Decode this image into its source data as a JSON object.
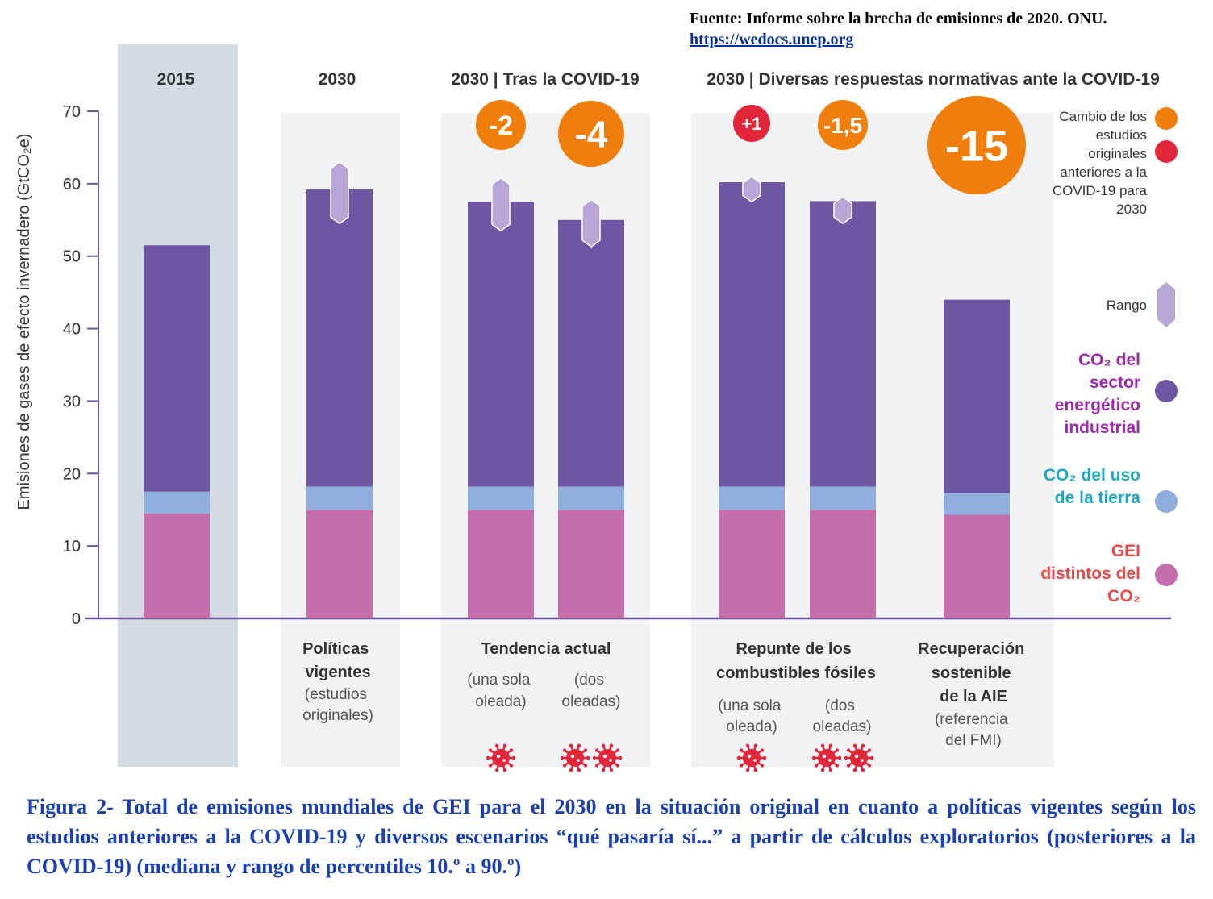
{
  "source": {
    "text": "Fuente: Informe sobre la brecha de emisiones de 2020. ONU.",
    "url": "https://wedocs.unep.org"
  },
  "headers": {
    "h2015": "2015",
    "h2030": "2030",
    "h_covid": "2030 | Tras la COVID-19",
    "h_policy": "2030 | Diversas respuestas normativas ante la COVID-19"
  },
  "chart_data": {
    "type": "bar",
    "stacked": true,
    "ylabel": "Emisiones de gases de efecto invernadero (GtCO₂e)",
    "ylim": [
      0,
      70
    ],
    "yticks": [
      0,
      10,
      20,
      30,
      40,
      50,
      60,
      70
    ],
    "categories": [
      "2015",
      "Políticas vigentes",
      "Tendencia actual (una sola oleada)",
      "Tendencia actual (dos oleadas)",
      "Repunte (una sola oleada)",
      "Repunte (dos oleadas)",
      "Recuperación sostenible"
    ],
    "series": [
      {
        "name": "GEI distintos del CO₂",
        "color": "#c46fab",
        "values": [
          14.5,
          15,
          15,
          15,
          15,
          15,
          14.3
        ]
      },
      {
        "name": "CO₂ del uso de la tierra",
        "color": "#8faede",
        "values": [
          3,
          3.2,
          3.2,
          3.2,
          3.2,
          3.2,
          3
        ]
      },
      {
        "name": "CO₂ del sector energético industrial",
        "color": "#6e56a3",
        "values": [
          34,
          41,
          39.3,
          36.8,
          42,
          39.4,
          26.7
        ]
      }
    ],
    "totals": [
      51.5,
      59.2,
      57.5,
      55,
      60.2,
      57.6,
      44
    ],
    "ranges": [
      null,
      [
        54.5,
        63
      ],
      [
        53.5,
        60.8
      ],
      [
        51.3,
        57.8
      ],
      [
        57.5,
        61
      ],
      [
        54.5,
        58.2
      ],
      null
    ],
    "changes": [
      {
        "label": "-2",
        "color": "#f07e0c",
        "bar": 2
      },
      {
        "label": "-4",
        "color": "#f07e0c",
        "bar": 3
      },
      {
        "label": "+1",
        "color": "#e3273b",
        "bar": 4
      },
      {
        "label": "-1,5",
        "color": "#f07e0c",
        "bar": 5
      },
      {
        "label": "-15",
        "color": "#f07e0c",
        "bar": 6
      }
    ],
    "virus_counts": [
      0,
      0,
      1,
      2,
      1,
      2,
      0
    ]
  },
  "bottom_labels": {
    "politicas_bold": "Políticas vigentes",
    "politicas_sub": "(estudios originales)",
    "tendencia_bold": "Tendencia actual",
    "tendencia_sub1": "(una sola oleada)",
    "tendencia_sub2": "(dos oleadas)",
    "repunte_bold": "Repunte de los combustibles fósiles",
    "repunte_sub1": "(una sola oleada)",
    "repunte_sub2": "(dos oleadas)",
    "recuperacion_bold": "Recuperación sostenible de la AIE",
    "recuperacion_sub": "(referencia del FMI)"
  },
  "legend": {
    "change": "Cambio de los estudios originales anteriores a la COVID-19 para 2030",
    "range": "Rango",
    "energy": "CO₂ del sector energético industrial",
    "land": "CO₂ del uso de la tierra",
    "other": "GEI distintos del CO₂",
    "energy_color": "#9d27b0",
    "land_color": "#1aa7c9",
    "other_color": "#e84a4a"
  },
  "caption": "Figura 2- Total de emisiones mundiales de GEI para el 2030 en la situación original en cuanto a políticas vigentes según los estudios anteriores a la COVID-19 y diversos escenarios “qué pasaría sí...” a partir de cálculos exploratorios (posteriores a la COVID-19) (mediana y rango de percentiles 10.º a 90.º)"
}
